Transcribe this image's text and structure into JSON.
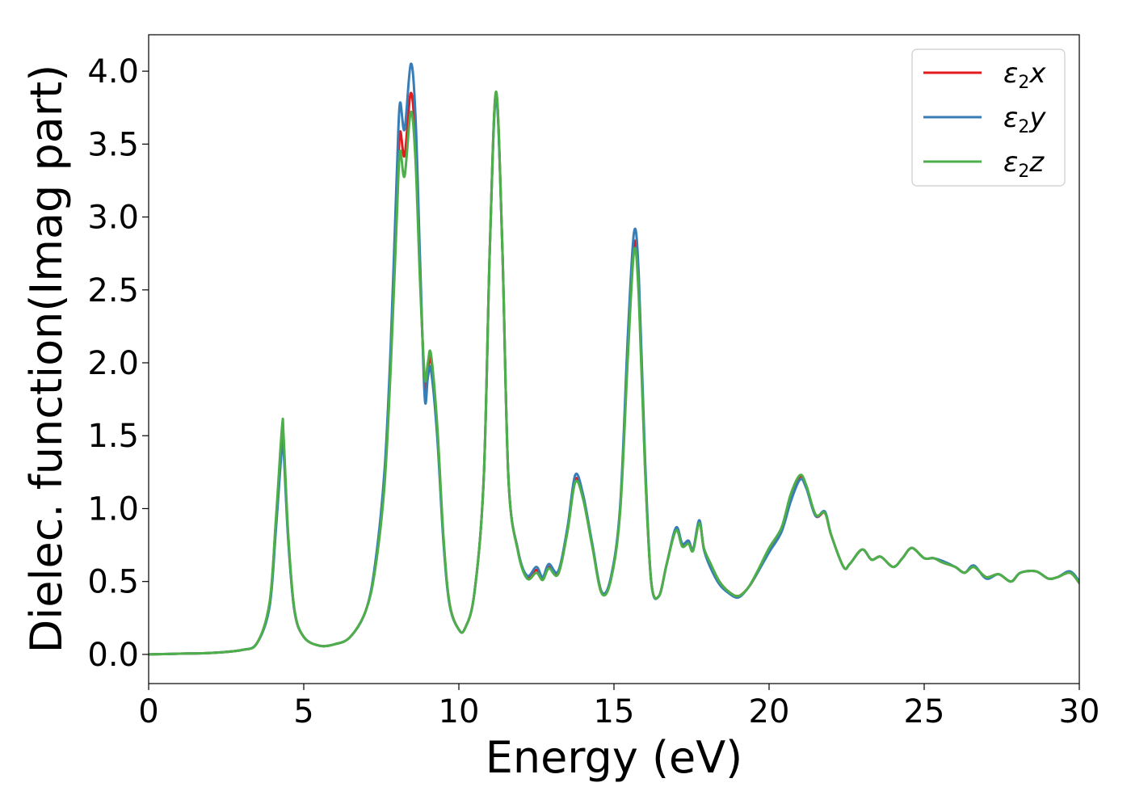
{
  "chart_data": {
    "type": "line",
    "xlabel": "Energy (eV)",
    "ylabel": "Dielec. function(Imag part)",
    "xlim": [
      0,
      30
    ],
    "ylim": [
      -0.2,
      4.25
    ],
    "xticks": [
      0,
      5,
      10,
      15,
      20,
      25,
      30
    ],
    "yticks": [
      0.0,
      0.5,
      1.0,
      1.5,
      2.0,
      2.5,
      3.0,
      3.5,
      4.0
    ],
    "grid": false,
    "legend_position": "top-right",
    "series": [
      {
        "name": "ε2x",
        "legend": {
          "base": "ε",
          "sub": "2",
          "var": "x"
        },
        "color": "#e41a1c",
        "x": [
          0,
          1,
          2,
          3,
          3.5,
          3.9,
          4.1,
          4.3,
          4.35,
          4.5,
          4.7,
          5,
          5.5,
          6,
          6.5,
          7,
          7.3,
          7.6,
          7.8,
          8.0,
          8.1,
          8.25,
          8.45,
          8.6,
          8.75,
          8.9,
          9.0,
          9.1,
          9.3,
          9.5,
          9.7,
          10.0,
          10.2,
          10.5,
          10.8,
          11.0,
          11.2,
          11.4,
          11.6,
          11.9,
          12.2,
          12.5,
          12.7,
          12.9,
          13.2,
          13.5,
          13.75,
          14.0,
          14.3,
          14.6,
          14.9,
          15.2,
          15.45,
          15.65,
          15.8,
          16.0,
          16.2,
          16.45,
          16.7,
          17.0,
          17.2,
          17.4,
          17.55,
          17.75,
          17.9,
          18.1,
          18.4,
          18.7,
          19.0,
          19.3,
          19.6,
          20.0,
          20.4,
          20.7,
          21.0,
          21.2,
          21.5,
          21.8,
          22.0,
          22.4,
          22.6,
          23.0,
          23.3,
          23.6,
          24.0,
          24.3,
          24.6,
          25.0,
          25.3,
          25.6,
          26.0,
          26.3,
          26.6,
          27.0,
          27.4,
          27.8,
          28.1,
          28.6,
          29.0,
          29.3,
          29.7,
          30
        ],
        "y": [
          0.0,
          0.005,
          0.01,
          0.03,
          0.08,
          0.35,
          0.9,
          1.5,
          1.45,
          0.8,
          0.3,
          0.12,
          0.06,
          0.07,
          0.12,
          0.3,
          0.6,
          1.2,
          2.0,
          3.1,
          3.58,
          3.42,
          3.85,
          3.5,
          2.6,
          1.85,
          1.95,
          2.02,
          1.55,
          0.8,
          0.35,
          0.17,
          0.18,
          0.42,
          1.2,
          2.8,
          3.85,
          2.8,
          1.2,
          0.72,
          0.53,
          0.58,
          0.52,
          0.6,
          0.56,
          0.85,
          1.2,
          1.08,
          0.75,
          0.43,
          0.52,
          1.0,
          2.1,
          2.82,
          2.5,
          1.3,
          0.5,
          0.4,
          0.62,
          0.86,
          0.75,
          0.78,
          0.72,
          0.91,
          0.72,
          0.62,
          0.5,
          0.43,
          0.4,
          0.45,
          0.55,
          0.72,
          0.86,
          1.08,
          1.22,
          1.15,
          0.95,
          0.97,
          0.82,
          0.6,
          0.62,
          0.72,
          0.65,
          0.67,
          0.6,
          0.66,
          0.73,
          0.66,
          0.66,
          0.63,
          0.6,
          0.56,
          0.6,
          0.53,
          0.55,
          0.5,
          0.56,
          0.57,
          0.52,
          0.53,
          0.56,
          0.49
        ]
      },
      {
        "name": "ε2y",
        "legend": {
          "base": "ε",
          "sub": "2",
          "var": "y"
        },
        "color": "#377eb8",
        "x": [
          0,
          1,
          2,
          3,
          3.5,
          3.9,
          4.1,
          4.3,
          4.35,
          4.5,
          4.7,
          5,
          5.5,
          6,
          6.5,
          7,
          7.3,
          7.6,
          7.8,
          8.0,
          8.1,
          8.25,
          8.45,
          8.6,
          8.75,
          8.9,
          9.0,
          9.1,
          9.3,
          9.5,
          9.7,
          10.0,
          10.2,
          10.5,
          10.8,
          11.0,
          11.2,
          11.4,
          11.6,
          11.9,
          12.2,
          12.5,
          12.7,
          12.9,
          13.2,
          13.5,
          13.75,
          14.0,
          14.3,
          14.6,
          14.9,
          15.2,
          15.45,
          15.65,
          15.8,
          16.0,
          16.2,
          16.45,
          16.7,
          17.0,
          17.2,
          17.4,
          17.55,
          17.75,
          17.9,
          18.1,
          18.4,
          18.7,
          19.0,
          19.3,
          19.6,
          20.0,
          20.4,
          20.7,
          21.0,
          21.2,
          21.5,
          21.8,
          22.0,
          22.4,
          22.6,
          23.0,
          23.3,
          23.6,
          24.0,
          24.3,
          24.6,
          25.0,
          25.3,
          25.6,
          26.0,
          26.3,
          26.6,
          27.0,
          27.4,
          27.8,
          28.1,
          28.6,
          29.0,
          29.3,
          29.7,
          30
        ],
        "y": [
          0.0,
          0.005,
          0.01,
          0.03,
          0.08,
          0.33,
          0.85,
          1.43,
          1.4,
          0.78,
          0.3,
          0.12,
          0.06,
          0.07,
          0.12,
          0.3,
          0.62,
          1.25,
          2.1,
          3.3,
          3.78,
          3.6,
          4.05,
          3.7,
          2.7,
          1.76,
          1.9,
          1.95,
          1.5,
          0.78,
          0.34,
          0.17,
          0.18,
          0.42,
          1.2,
          2.8,
          3.82,
          2.8,
          1.2,
          0.72,
          0.54,
          0.6,
          0.53,
          0.62,
          0.57,
          0.87,
          1.23,
          1.1,
          0.76,
          0.43,
          0.53,
          1.02,
          2.2,
          2.9,
          2.6,
          1.35,
          0.5,
          0.4,
          0.62,
          0.87,
          0.76,
          0.78,
          0.72,
          0.92,
          0.72,
          0.6,
          0.48,
          0.42,
          0.39,
          0.45,
          0.55,
          0.7,
          0.84,
          1.05,
          1.2,
          1.14,
          0.95,
          0.98,
          0.82,
          0.6,
          0.62,
          0.72,
          0.65,
          0.67,
          0.6,
          0.66,
          0.73,
          0.66,
          0.66,
          0.64,
          0.6,
          0.56,
          0.61,
          0.52,
          0.55,
          0.5,
          0.56,
          0.57,
          0.52,
          0.53,
          0.57,
          0.5
        ]
      },
      {
        "name": "ε2z",
        "legend": {
          "base": "ε",
          "sub": "2",
          "var": "z"
        },
        "color": "#4daf4a",
        "x": [
          0,
          1,
          2,
          3,
          3.5,
          3.9,
          4.1,
          4.3,
          4.35,
          4.5,
          4.7,
          5,
          5.5,
          6,
          6.5,
          7,
          7.3,
          7.6,
          7.8,
          8.0,
          8.1,
          8.25,
          8.45,
          8.6,
          8.75,
          8.9,
          9.0,
          9.1,
          9.3,
          9.5,
          9.7,
          10.0,
          10.2,
          10.5,
          10.8,
          11.0,
          11.2,
          11.4,
          11.6,
          11.9,
          12.2,
          12.5,
          12.7,
          12.9,
          13.2,
          13.5,
          13.75,
          14.0,
          14.3,
          14.6,
          14.9,
          15.2,
          15.45,
          15.65,
          15.8,
          16.0,
          16.2,
          16.45,
          16.7,
          17.0,
          17.2,
          17.4,
          17.55,
          17.75,
          17.9,
          18.1,
          18.4,
          18.7,
          19.0,
          19.3,
          19.6,
          20.0,
          20.4,
          20.7,
          21.0,
          21.2,
          21.5,
          21.8,
          22.0,
          22.4,
          22.6,
          23.0,
          23.3,
          23.6,
          24.0,
          24.3,
          24.6,
          25.0,
          25.3,
          25.6,
          26.0,
          26.3,
          26.6,
          27.0,
          27.4,
          27.8,
          28.1,
          28.6,
          29.0,
          29.3,
          29.7,
          30
        ],
        "y": [
          0.0,
          0.005,
          0.01,
          0.03,
          0.08,
          0.36,
          0.92,
          1.56,
          1.5,
          0.82,
          0.31,
          0.12,
          0.06,
          0.07,
          0.12,
          0.3,
          0.58,
          1.15,
          1.95,
          3.0,
          3.45,
          3.28,
          3.72,
          3.4,
          2.55,
          1.9,
          2.0,
          2.06,
          1.58,
          0.82,
          0.35,
          0.17,
          0.18,
          0.42,
          1.2,
          2.8,
          3.86,
          2.8,
          1.2,
          0.71,
          0.52,
          0.56,
          0.51,
          0.59,
          0.55,
          0.84,
          1.18,
          1.07,
          0.74,
          0.42,
          0.51,
          0.98,
          2.05,
          2.77,
          2.45,
          1.28,
          0.5,
          0.4,
          0.62,
          0.85,
          0.74,
          0.76,
          0.71,
          0.9,
          0.73,
          0.63,
          0.5,
          0.43,
          0.4,
          0.45,
          0.56,
          0.73,
          0.87,
          1.1,
          1.23,
          1.16,
          0.96,
          0.97,
          0.82,
          0.6,
          0.62,
          0.72,
          0.65,
          0.67,
          0.6,
          0.66,
          0.73,
          0.66,
          0.66,
          0.63,
          0.6,
          0.56,
          0.6,
          0.53,
          0.55,
          0.5,
          0.56,
          0.57,
          0.52,
          0.53,
          0.56,
          0.49
        ]
      }
    ]
  }
}
